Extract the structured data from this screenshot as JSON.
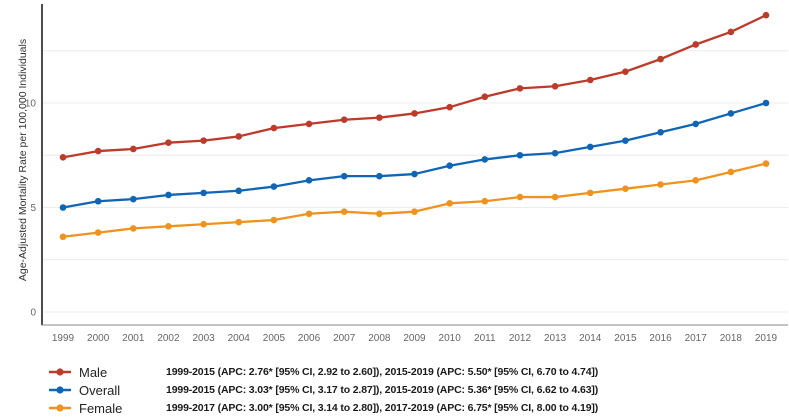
{
  "chart_data": {
    "type": "line",
    "ylabel": "Age-Adjusted Mortality Rate per 100,000 Individuals",
    "x": [
      1999,
      2000,
      2001,
      2002,
      2003,
      2004,
      2005,
      2006,
      2007,
      2008,
      2009,
      2010,
      2011,
      2012,
      2013,
      2014,
      2015,
      2016,
      2017,
      2018,
      2019
    ],
    "series": [
      {
        "name": "Male",
        "color": "#bd3b2b",
        "values": [
          7.4,
          7.7,
          7.8,
          8.1,
          8.2,
          8.4,
          8.8,
          9.0,
          9.2,
          9.3,
          9.5,
          9.8,
          10.3,
          10.7,
          10.8,
          11.1,
          11.5,
          12.1,
          12.8,
          13.4,
          14.2
        ]
      },
      {
        "name": "Overall",
        "color": "#1066b5",
        "values": [
          5.0,
          5.3,
          5.4,
          5.6,
          5.7,
          5.8,
          6.0,
          6.3,
          6.5,
          6.5,
          6.6,
          7.0,
          7.3,
          7.5,
          7.6,
          7.9,
          8.2,
          8.6,
          9.0,
          9.5,
          10.0
        ]
      },
      {
        "name": "Female",
        "color": "#f0931e",
        "values": [
          3.6,
          3.8,
          4.0,
          4.1,
          4.2,
          4.3,
          4.4,
          4.7,
          4.8,
          4.7,
          4.8,
          5.2,
          5.3,
          5.5,
          5.5,
          5.7,
          5.9,
          6.1,
          6.3,
          6.7,
          7.1
        ]
      }
    ],
    "ylim": [
      0,
      14.8
    ],
    "yticks": [
      0,
      5,
      10
    ],
    "gridlines": [
      0,
      2.5,
      5,
      7.5,
      10,
      12.5
    ],
    "grid": "horizontal-only",
    "legend_position": "bottom-left",
    "legend": [
      {
        "name": "Male",
        "apc": "1999-2015 (APC: 2.76* [95% CI, 2.92 to 2.60]), 2015-2019 (APC: 5.50* [95% CI, 6.70 to 4.74])"
      },
      {
        "name": "Overall",
        "apc": "1999-2015 (APC: 3.03* [95% CI, 3.17 to 2.87]), 2015-2019 (APC: 5.36* [95% CI, 6.62 to 4.63])"
      },
      {
        "name": "Female",
        "apc": "1999-2017 (APC: 3.00* [95% CI, 3.14 to 2.80]), 2017-2019 (APC: 6.75* [95% CI, 8.00 to 4.19])"
      }
    ]
  }
}
